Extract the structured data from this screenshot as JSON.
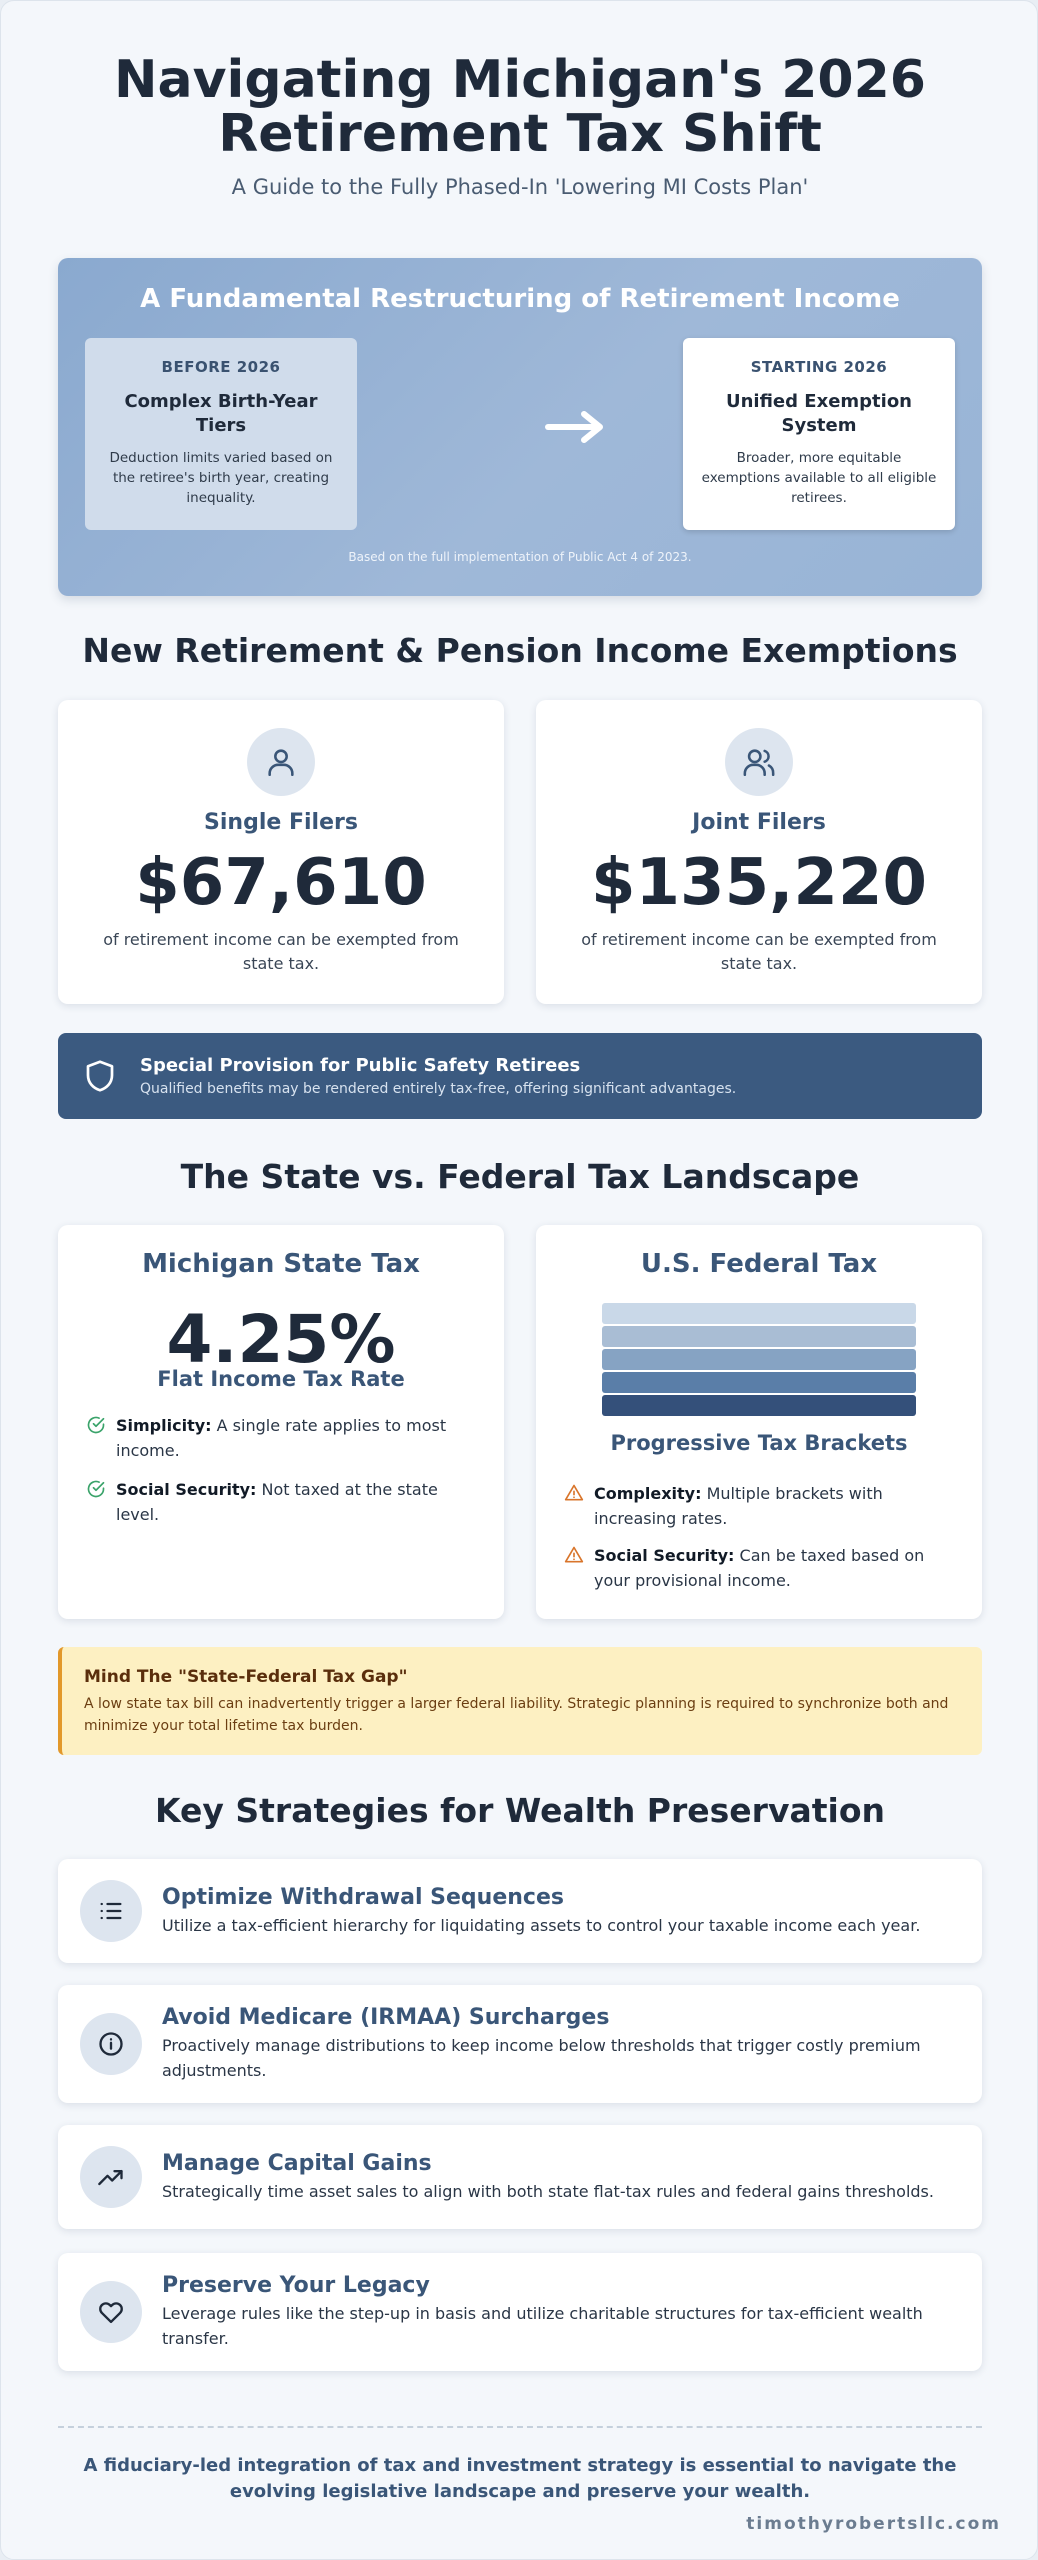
{
  "header": {
    "title_line1": "Navigating Michigan's 2026",
    "title_line2": "Retirement Tax Shift",
    "subtitle": "A Guide to the Fully Phased-In 'Lowering MI Costs Plan'"
  },
  "hero": {
    "heading": "A Fundamental Restructuring of Retirement Income",
    "before": {
      "label": "BEFORE 2026",
      "title": "Complex Birth-Year Tiers",
      "description": "Deduction limits varied based on the retiree's birth year, creating inequality."
    },
    "after": {
      "label": "STARTING 2026",
      "title": "Unified Exemption System",
      "description": "Broader, more equitable exemptions available to all eligible retirees."
    },
    "arrow_icon": "arrow-right-icon",
    "note": "Based on the full implementation of Public Act 4 of 2023."
  },
  "exemptions": {
    "heading": "New Retirement & Pension Income Exemptions",
    "single": {
      "icon": "user-icon",
      "title": "Single Filers",
      "amount": "$67,610",
      "description": "of retirement income can be exempted from state tax."
    },
    "joint": {
      "icon": "users-icon",
      "title": "Joint Filers",
      "amount": "$135,220",
      "description": "of retirement income can be exempted from state tax."
    }
  },
  "provision": {
    "icon": "shield-icon",
    "title": "Special Provision for Public Safety Retirees",
    "text": "Qualified benefits may be rendered entirely tax-free, offering significant advantages."
  },
  "landscape": {
    "heading": "The State vs. Federal Tax Landscape",
    "state": {
      "title": "Michigan State Tax",
      "rate": "4.25%",
      "rate_label": "Flat Income Tax Rate",
      "bullets": [
        {
          "icon": "check-circle-icon",
          "bold": "Simplicity:",
          "text": " A single rate applies to most income."
        },
        {
          "icon": "check-circle-icon",
          "bold": "Social Security:",
          "text": " Not taxed at the state level."
        }
      ]
    },
    "federal": {
      "title": "U.S. Federal Tax",
      "brackets_label": "Progressive Tax Brackets",
      "bracket_colors": [
        "#c9d8e8",
        "#a9bdd4",
        "#86a3c3",
        "#5a7ea8",
        "#34507a"
      ],
      "bullets": [
        {
          "icon": "warning-triangle-icon",
          "bold": "Complexity:",
          "text": " Multiple brackets with increasing rates."
        },
        {
          "icon": "warning-triangle-icon",
          "bold": "Social Security:",
          "text": " Can be taxed based on your provisional income."
        }
      ]
    }
  },
  "gap": {
    "title": "Mind The \"State-Federal Tax Gap\"",
    "text": "A low state tax bill can inadvertently trigger a larger federal liability. Strategic planning is required to synchronize both and minimize your total lifetime tax burden."
  },
  "strategies": {
    "heading": "Key Strategies for Wealth Preservation",
    "items": [
      {
        "icon": "list-icon",
        "title": "Optimize Withdrawal Sequences",
        "text": "Utilize a tax-efficient hierarchy for liquidating assets to control your taxable income each year."
      },
      {
        "icon": "info-icon",
        "title": "Avoid Medicare (IRMAA) Surcharges",
        "text": "Proactively manage distributions to keep income below thresholds that trigger costly premium adjustments."
      },
      {
        "icon": "trending-up-icon",
        "title": "Manage Capital Gains",
        "text": "Strategically time asset sales to align with both state flat-tax rules and federal gains thresholds."
      },
      {
        "icon": "heart-icon",
        "title": "Preserve Your Legacy",
        "text": "Leverage rules like the step-up in basis and utilize charitable structures for tax-efficient wealth transfer."
      }
    ]
  },
  "footer": {
    "closing": "A fiduciary-led integration of tax and investment strategy is essential to navigate the evolving legislative landscape and preserve your wealth.",
    "site": "timothyrobertsllc.com"
  }
}
